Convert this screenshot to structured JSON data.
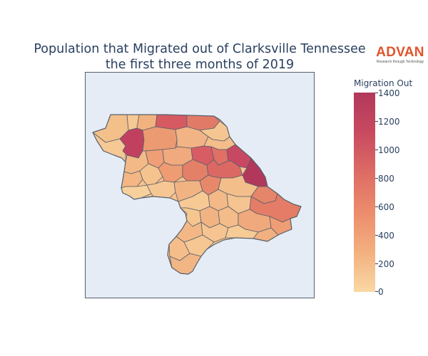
{
  "title": {
    "line1": "Population that Migrated out of Clarksville Tennessee",
    "line2": "the first three months of 2019"
  },
  "logo": {
    "word": "ADVAN",
    "tagline": "Research through Technology",
    "color": "#e0542c"
  },
  "colorbar": {
    "title": "Migration Out",
    "ticks": [
      "1400",
      "1200",
      "1000",
      "800",
      "600",
      "400",
      "200",
      "0"
    ],
    "range": [
      0,
      1400
    ],
    "colorscale": [
      "#f9d8a4",
      "#f3b07f",
      "#ec8c6c",
      "#d86163",
      "#c03e5e",
      "#b2385b"
    ]
  },
  "map": {
    "background": "#e5ecf6",
    "border_color": "#56606b",
    "region_count": 70
  }
}
